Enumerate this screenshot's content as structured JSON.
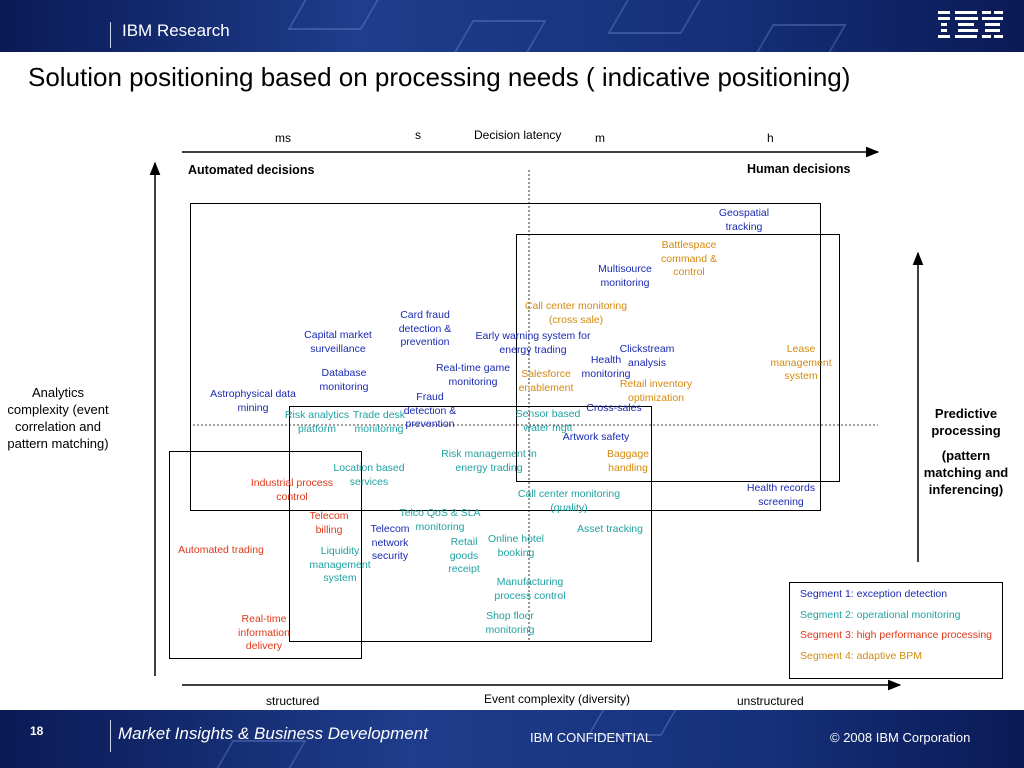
{
  "header": {
    "brand": "IBM Research",
    "logo": "IBM"
  },
  "title": "Solution positioning based on processing needs ( indicative positioning)",
  "axes": {
    "latency_label": "Decision latency",
    "latency_ticks": [
      "ms",
      "s",
      "m",
      "h"
    ],
    "left_top": "Automated decisions",
    "right_top": "Human decisions",
    "y_label": "Analytics complexity (event correlation and pattern matching)",
    "x_label": "Event complexity (diversity)",
    "x_left": "structured",
    "x_right": "unstructured",
    "right_label_1": "Predictive processing",
    "right_label_2": "(pattern matching and inferencing)"
  },
  "items": [
    {
      "text": "Geospatial tracking",
      "seg": 1
    },
    {
      "text": "Battlespace command & control",
      "seg": 4
    },
    {
      "text": "Multisource monitoring",
      "seg": 1
    },
    {
      "text": "Call center monitoring (cross sale)",
      "seg": 4
    },
    {
      "text": "Card fraud detection & prevention",
      "seg": 1
    },
    {
      "text": "Capital market surveillance",
      "seg": 1
    },
    {
      "text": "Early warning system for energy trading",
      "seg": 1
    },
    {
      "text": "Clickstream analysis",
      "seg": 1
    },
    {
      "text": "Lease management system",
      "seg": 4
    },
    {
      "text": "Database monitoring",
      "seg": 1
    },
    {
      "text": "Real-time game monitoring",
      "seg": 1
    },
    {
      "text": "Health monitoring",
      "seg": 1
    },
    {
      "text": "Salesforce enablement",
      "seg": 4
    },
    {
      "text": "Retail inventory optimization",
      "seg": 4
    },
    {
      "text": "Astrophysical data mining",
      "seg": 1
    },
    {
      "text": "Fraud detection & prevention",
      "seg": 1
    },
    {
      "text": "Risk analytics platform",
      "seg": 2
    },
    {
      "text": "Trade desk monitoring",
      "seg": 2
    },
    {
      "text": "Sensor based water mgtt",
      "seg": 2
    },
    {
      "text": "Cross-sales",
      "seg": 1
    },
    {
      "text": "Artwork safety",
      "seg": 1
    },
    {
      "text": "Risk management in energy trading",
      "seg": 2
    },
    {
      "text": "Baggage handling",
      "seg": 4
    },
    {
      "text": "Location based services",
      "seg": 2
    },
    {
      "text": "Industrial process control",
      "seg": 3
    },
    {
      "text": "Call center monitoring (quality)",
      "seg": 2
    },
    {
      "text": "Health records screening",
      "seg": 1
    },
    {
      "text": "Telecom billing",
      "seg": 3
    },
    {
      "text": "Telco QoS & SLA monitoring",
      "seg": 2
    },
    {
      "text": "Asset tracking",
      "seg": 2
    },
    {
      "text": "Telecom network security",
      "seg": 1
    },
    {
      "text": "Online hotel booking",
      "seg": 2
    },
    {
      "text": "Automated trading",
      "seg": 3
    },
    {
      "text": "Liquidity management system",
      "seg": 2
    },
    {
      "text": "Retail goods receipt",
      "seg": 2
    },
    {
      "text": "Manufacturing process control",
      "seg": 2
    },
    {
      "text": "Real-time information delivery",
      "seg": 3
    },
    {
      "text": "Shop floor monitoring",
      "seg": 2
    }
  ],
  "legend": [
    {
      "text": "Segment 1: exception detection",
      "color": "#1a2ab0"
    },
    {
      "text": "Segment 2: operational monitoring",
      "color": "#20a2a2"
    },
    {
      "text": "Segment 3: high performance processing",
      "color": "#e03818"
    },
    {
      "text": "Segment 4: adaptive BPM",
      "color": "#d48a10"
    }
  ],
  "footer": {
    "page": "18",
    "unit": "Market Insights & Business Development",
    "confidential": "IBM CONFIDENTIAL",
    "copyright": "© 2008 IBM Corporation"
  }
}
